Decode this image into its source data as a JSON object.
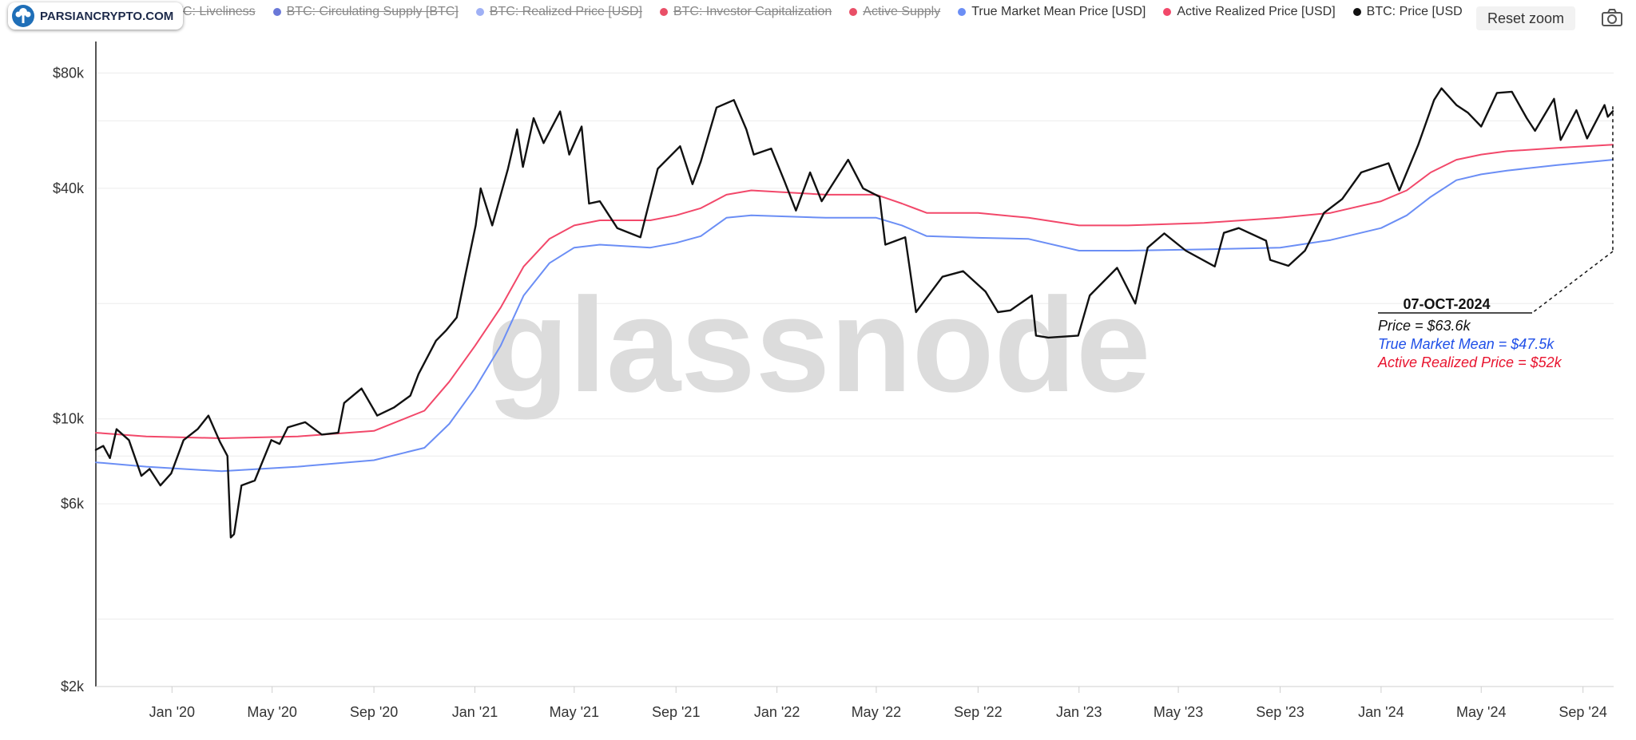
{
  "legend": [
    {
      "label": "BTC: Price [USD]",
      "color": "#8a8a8a",
      "enabled": false
    },
    {
      "label": "BTC: Liveliness",
      "color": "#e35a72",
      "enabled": false
    },
    {
      "label": "BTC: Circulating Supply [BTC]",
      "color": "#6a78d8",
      "enabled": false
    },
    {
      "label": "BTC: Realized Price [USD]",
      "color": "#9fb0f5",
      "enabled": false
    },
    {
      "label": "BTC: Investor Capitalization",
      "color": "#e94f67",
      "enabled": false
    },
    {
      "label": "Active Supply",
      "color": "#e94f67",
      "enabled": false
    },
    {
      "label": "True Market Mean Price [USD]",
      "color": "#6b8ef5",
      "enabled": true
    },
    {
      "label": "Active Realized Price [USD]",
      "color": "#f2486a",
      "enabled": true
    },
    {
      "label": "BTC: Price [USD]",
      "color": "#111111",
      "enabled": true
    }
  ],
  "toolbar": {
    "reset_zoom": "Reset zoom",
    "camera_icon": "camera-icon"
  },
  "brand": {
    "text": "PARSIANCRYPTO.COM",
    "logo_icon": "tree-logo-icon"
  },
  "watermark": "glassnode",
  "chart_data": {
    "type": "line",
    "y_scale": "log",
    "ylim": [
      2000,
      100000
    ],
    "y_ticks": [
      {
        "value": 2000,
        "label": "$2k"
      },
      {
        "value": 6000,
        "label": "$6k"
      },
      {
        "value": 10000,
        "label": "$10k"
      },
      {
        "value": 40000,
        "label": "$40k"
      },
      {
        "value": 80000,
        "label": "$80k"
      }
    ],
    "y_gridlines": [
      2000,
      3000,
      6000,
      8000,
      10000,
      20000,
      40000,
      60000,
      80000
    ],
    "xlim": [
      "2019-10-01",
      "2024-10-08"
    ],
    "x_ticks": [
      {
        "date": "2020-01-01",
        "label": "Jan '20"
      },
      {
        "date": "2020-05-01",
        "label": "May '20"
      },
      {
        "date": "2020-09-01",
        "label": "Sep '20"
      },
      {
        "date": "2021-01-01",
        "label": "Jan '21"
      },
      {
        "date": "2021-05-01",
        "label": "May '21"
      },
      {
        "date": "2021-09-01",
        "label": "Sep '21"
      },
      {
        "date": "2022-01-01",
        "label": "Jan '22"
      },
      {
        "date": "2022-05-01",
        "label": "May '22"
      },
      {
        "date": "2022-09-01",
        "label": "Sep '22"
      },
      {
        "date": "2023-01-01",
        "label": "Jan '23"
      },
      {
        "date": "2023-05-01",
        "label": "May '23"
      },
      {
        "date": "2023-09-01",
        "label": "Sep '23"
      },
      {
        "date": "2024-01-01",
        "label": "Jan '24"
      },
      {
        "date": "2024-05-01",
        "label": "May '24"
      },
      {
        "date": "2024-09-01",
        "label": "Sep '24"
      }
    ],
    "grid": true,
    "legend_position": "top",
    "series": [
      {
        "name": "BTC: Price [USD]",
        "color": "#111111",
        "points": [
          [
            "2019-10-01",
            8300
          ],
          [
            "2019-10-10",
            8500
          ],
          [
            "2019-10-18",
            7900
          ],
          [
            "2019-10-26",
            9400
          ],
          [
            "2019-11-10",
            8800
          ],
          [
            "2019-11-25",
            7100
          ],
          [
            "2019-12-05",
            7400
          ],
          [
            "2019-12-18",
            6700
          ],
          [
            "2019-12-31",
            7200
          ],
          [
            "2020-01-15",
            8800
          ],
          [
            "2020-02-01",
            9400
          ],
          [
            "2020-02-14",
            10200
          ],
          [
            "2020-02-28",
            8700
          ],
          [
            "2020-03-08",
            8000
          ],
          [
            "2020-03-12",
            4900
          ],
          [
            "2020-03-16",
            5000
          ],
          [
            "2020-03-25",
            6700
          ],
          [
            "2020-04-10",
            6900
          ],
          [
            "2020-04-30",
            8800
          ],
          [
            "2020-05-10",
            8600
          ],
          [
            "2020-05-20",
            9500
          ],
          [
            "2020-06-10",
            9800
          ],
          [
            "2020-06-30",
            9100
          ],
          [
            "2020-07-20",
            9200
          ],
          [
            "2020-07-27",
            11000
          ],
          [
            "2020-08-17",
            12000
          ],
          [
            "2020-09-05",
            10200
          ],
          [
            "2020-09-25",
            10700
          ],
          [
            "2020-10-15",
            11500
          ],
          [
            "2020-10-25",
            13100
          ],
          [
            "2020-11-15",
            16000
          ],
          [
            "2020-11-27",
            17000
          ],
          [
            "2020-12-10",
            18400
          ],
          [
            "2020-12-20",
            23500
          ],
          [
            "2021-01-02",
            32000
          ],
          [
            "2021-01-08",
            40000
          ],
          [
            "2021-01-22",
            32000
          ],
          [
            "2021-02-10",
            45000
          ],
          [
            "2021-02-21",
            57000
          ],
          [
            "2021-02-28",
            45500
          ],
          [
            "2021-03-13",
            61000
          ],
          [
            "2021-03-25",
            52500
          ],
          [
            "2021-04-14",
            63500
          ],
          [
            "2021-04-25",
            49000
          ],
          [
            "2021-05-10",
            58000
          ],
          [
            "2021-05-19",
            36500
          ],
          [
            "2021-06-01",
            37000
          ],
          [
            "2021-06-22",
            31500
          ],
          [
            "2021-07-20",
            29800
          ],
          [
            "2021-08-10",
            45000
          ],
          [
            "2021-09-06",
            51500
          ],
          [
            "2021-09-21",
            41000
          ],
          [
            "2021-10-01",
            47000
          ],
          [
            "2021-10-20",
            65000
          ],
          [
            "2021-11-10",
            68000
          ],
          [
            "2021-11-25",
            57000
          ],
          [
            "2021-12-04",
            49000
          ],
          [
            "2021-12-25",
            50800
          ],
          [
            "2022-01-10",
            41800
          ],
          [
            "2022-01-24",
            35000
          ],
          [
            "2022-02-10",
            44000
          ],
          [
            "2022-02-24",
            37000
          ],
          [
            "2022-03-28",
            47500
          ],
          [
            "2022-04-15",
            40000
          ],
          [
            "2022-05-05",
            38000
          ],
          [
            "2022-05-12",
            28500
          ],
          [
            "2022-06-05",
            29800
          ],
          [
            "2022-06-18",
            19000
          ],
          [
            "2022-07-20",
            23500
          ],
          [
            "2022-08-14",
            24300
          ],
          [
            "2022-09-10",
            21500
          ],
          [
            "2022-09-25",
            19000
          ],
          [
            "2022-10-10",
            19200
          ],
          [
            "2022-11-05",
            21000
          ],
          [
            "2022-11-10",
            16500
          ],
          [
            "2022-11-25",
            16300
          ],
          [
            "2022-12-31",
            16500
          ],
          [
            "2023-01-14",
            21000
          ],
          [
            "2023-02-16",
            24800
          ],
          [
            "2023-03-10",
            20000
          ],
          [
            "2023-03-25",
            28000
          ],
          [
            "2023-04-14",
            30500
          ],
          [
            "2023-05-10",
            27500
          ],
          [
            "2023-06-14",
            25000
          ],
          [
            "2023-06-25",
            30600
          ],
          [
            "2023-07-13",
            31500
          ],
          [
            "2023-08-15",
            29200
          ],
          [
            "2023-08-20",
            26000
          ],
          [
            "2023-09-11",
            25100
          ],
          [
            "2023-10-01",
            27500
          ],
          [
            "2023-10-24",
            34500
          ],
          [
            "2023-11-15",
            37500
          ],
          [
            "2023-12-08",
            44000
          ],
          [
            "2024-01-10",
            46500
          ],
          [
            "2024-01-23",
            39500
          ],
          [
            "2024-02-15",
            52000
          ],
          [
            "2024-03-05",
            68000
          ],
          [
            "2024-03-14",
            73000
          ],
          [
            "2024-04-01",
            66000
          ],
          [
            "2024-04-15",
            63000
          ],
          [
            "2024-05-01",
            58000
          ],
          [
            "2024-05-20",
            71000
          ],
          [
            "2024-06-07",
            71500
          ],
          [
            "2024-06-25",
            61000
          ],
          [
            "2024-07-05",
            56500
          ],
          [
            "2024-07-28",
            68500
          ],
          [
            "2024-08-05",
            53500
          ],
          [
            "2024-08-24",
            64000
          ],
          [
            "2024-09-06",
            54000
          ],
          [
            "2024-09-27",
            66000
          ],
          [
            "2024-10-01",
            61500
          ],
          [
            "2024-10-07",
            63600
          ]
        ]
      },
      {
        "name": "True Market Mean Price [USD]",
        "color": "#6b8ef5",
        "points": [
          [
            "2019-10-01",
            7700
          ],
          [
            "2019-12-01",
            7500
          ],
          [
            "2020-03-01",
            7300
          ],
          [
            "2020-06-01",
            7500
          ],
          [
            "2020-09-01",
            7800
          ],
          [
            "2020-11-01",
            8400
          ],
          [
            "2020-12-01",
            9700
          ],
          [
            "2021-01-01",
            12000
          ],
          [
            "2021-02-01",
            15500
          ],
          [
            "2021-03-01",
            21000
          ],
          [
            "2021-04-01",
            25500
          ],
          [
            "2021-05-01",
            28000
          ],
          [
            "2021-06-01",
            28500
          ],
          [
            "2021-08-01",
            28000
          ],
          [
            "2021-09-01",
            28800
          ],
          [
            "2021-10-01",
            30000
          ],
          [
            "2021-11-01",
            33500
          ],
          [
            "2021-12-01",
            34000
          ],
          [
            "2022-03-01",
            33500
          ],
          [
            "2022-05-01",
            33500
          ],
          [
            "2022-06-01",
            32000
          ],
          [
            "2022-07-01",
            30000
          ],
          [
            "2022-09-01",
            29700
          ],
          [
            "2022-11-01",
            29500
          ],
          [
            "2023-01-01",
            27500
          ],
          [
            "2023-03-01",
            27500
          ],
          [
            "2023-06-01",
            27700
          ],
          [
            "2023-09-01",
            28000
          ],
          [
            "2023-11-01",
            29300
          ],
          [
            "2024-01-01",
            31500
          ],
          [
            "2024-02-01",
            34000
          ],
          [
            "2024-03-01",
            38000
          ],
          [
            "2024-04-01",
            42000
          ],
          [
            "2024-05-01",
            43500
          ],
          [
            "2024-06-01",
            44500
          ],
          [
            "2024-08-01",
            46000
          ],
          [
            "2024-10-07",
            47500
          ]
        ]
      },
      {
        "name": "Active Realized Price [USD]",
        "color": "#f2486a",
        "points": [
          [
            "2019-10-01",
            9200
          ],
          [
            "2019-12-01",
            9000
          ],
          [
            "2020-03-01",
            8900
          ],
          [
            "2020-06-01",
            9000
          ],
          [
            "2020-09-01",
            9300
          ],
          [
            "2020-11-01",
            10500
          ],
          [
            "2020-12-01",
            12500
          ],
          [
            "2021-01-01",
            15500
          ],
          [
            "2021-02-01",
            19500
          ],
          [
            "2021-03-01",
            25000
          ],
          [
            "2021-04-01",
            29500
          ],
          [
            "2021-05-01",
            32000
          ],
          [
            "2021-06-01",
            33000
          ],
          [
            "2021-08-01",
            33000
          ],
          [
            "2021-09-01",
            34000
          ],
          [
            "2021-10-01",
            35500
          ],
          [
            "2021-11-01",
            38500
          ],
          [
            "2021-12-01",
            39500
          ],
          [
            "2022-03-01",
            38500
          ],
          [
            "2022-05-01",
            38500
          ],
          [
            "2022-06-01",
            36500
          ],
          [
            "2022-07-01",
            34500
          ],
          [
            "2022-09-01",
            34500
          ],
          [
            "2022-11-01",
            33500
          ],
          [
            "2023-01-01",
            32000
          ],
          [
            "2023-03-01",
            32000
          ],
          [
            "2023-06-01",
            32500
          ],
          [
            "2023-09-01",
            33500
          ],
          [
            "2023-11-01",
            34500
          ],
          [
            "2024-01-01",
            37000
          ],
          [
            "2024-02-01",
            39500
          ],
          [
            "2024-03-01",
            44000
          ],
          [
            "2024-04-01",
            47500
          ],
          [
            "2024-05-01",
            49000
          ],
          [
            "2024-06-01",
            50000
          ],
          [
            "2024-08-01",
            51000
          ],
          [
            "2024-10-07",
            52000
          ]
        ]
      }
    ],
    "annotation": {
      "date": "07-OCT-2024",
      "lines": [
        {
          "text": "Price = $63.6k",
          "color": "#111111"
        },
        {
          "text": "True Market Mean = $47.5k",
          "color": "#1f4fe8"
        },
        {
          "text": "Active Realized Price = $52k",
          "color": "#e8142f"
        }
      ]
    }
  }
}
